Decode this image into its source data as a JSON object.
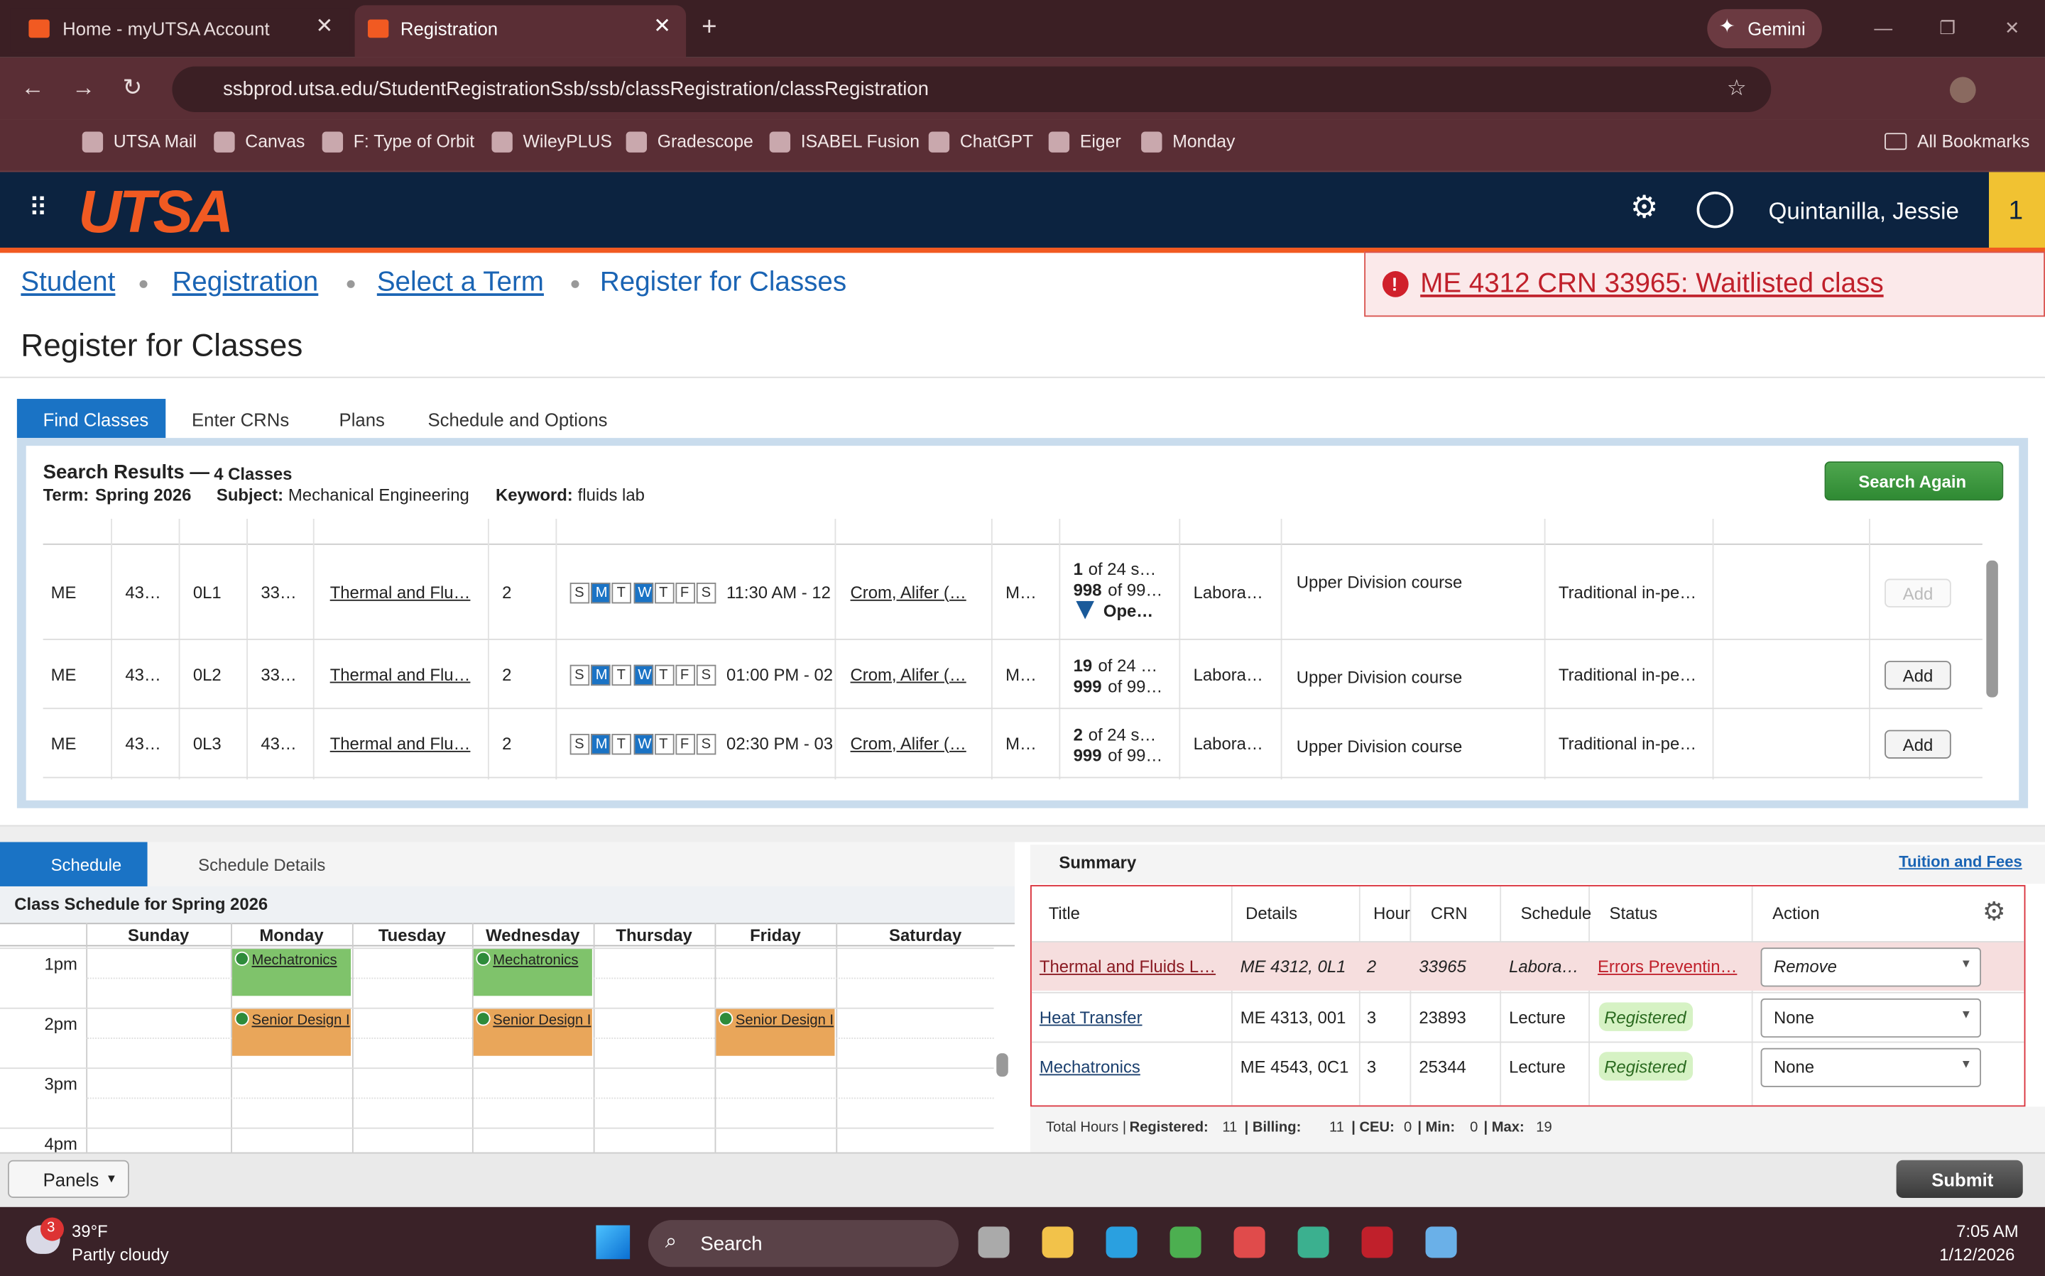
{
  "browser": {
    "tabs": [
      "Home - myUTSA Account",
      "Registration"
    ],
    "gemini": "Gemini",
    "url": "ssbprod.utsa.edu/StudentRegistrationSsb/ssb/classRegistration/classRegistration",
    "bookmarks": [
      "UTSA Mail",
      "Canvas",
      "F: Type of Orbit",
      "WileyPLUS",
      "Gradescope",
      "ISABEL Fusion",
      "ChatGPT",
      "Eiger",
      "Monday"
    ],
    "all_bookmarks": "All Bookmarks"
  },
  "header": {
    "logo": "UTSA",
    "user": "Quintanilla, Jessie",
    "badge": "1"
  },
  "breadcrumb": [
    "Student",
    "Registration",
    "Select a Term",
    "Register for Classes"
  ],
  "alert": "ME 4312 CRN 33965: Waitlisted class",
  "title": "Register for Classes",
  "tabs": [
    "Find Classes",
    "Enter CRNs",
    "Plans",
    "Schedule and Options"
  ],
  "search": {
    "heading": "Search Results —",
    "count": "4 Classes",
    "term_label": "Term:",
    "term": "Spring 2026",
    "subject_label": "Subject:",
    "subject": "Mechanical Engineering",
    "keyword_label": "Keyword:",
    "keyword": "fluids lab",
    "button": "Search Again",
    "days": [
      "S",
      "M",
      "T",
      "W",
      "T",
      "F",
      "S"
    ],
    "rows": [
      {
        "subject": "ME",
        "course": "43…",
        "section": "0L1",
        "crn": "33…",
        "title": "Thermal and Flu…",
        "hours": "2",
        "time": "11:30 AM - 12",
        "instructor": "Crom, Alifer (…",
        "campus": "M…",
        "seats": [
          "1",
          "of 24 s…"
        ],
        "waitlist": [
          "998",
          "of 99…"
        ],
        "open": "Ope…",
        "schedule_type": "Labora…",
        "attribute": "Upper Division course",
        "method": "Traditional in-pe…",
        "action": "Add"
      },
      {
        "subject": "ME",
        "course": "43…",
        "section": "0L2",
        "crn": "33…",
        "title": "Thermal and Flu…",
        "hours": "2",
        "time": "01:00 PM - 02",
        "instructor": "Crom, Alifer (…",
        "campus": "M…",
        "seats": [
          "19",
          "of 24 …"
        ],
        "waitlist": [
          "999",
          "of 99…"
        ],
        "schedule_type": "Labora…",
        "attribute": "Upper Division course",
        "method": "Traditional in-pe…",
        "action": "Add"
      },
      {
        "subject": "ME",
        "course": "43…",
        "section": "0L3",
        "crn": "43…",
        "title": "Thermal and Flu…",
        "hours": "2",
        "time": "02:30 PM - 03",
        "instructor": "Crom, Alifer (…",
        "campus": "M…",
        "seats": [
          "2",
          "of 24 s…"
        ],
        "waitlist": [
          "999",
          "of 99…"
        ],
        "schedule_type": "Labora…",
        "attribute": "Upper Division course",
        "method": "Traditional in-pe…",
        "action": "Add"
      }
    ]
  },
  "schedule": {
    "tabs": [
      "Schedule",
      "Schedule Details"
    ],
    "heading": "Class Schedule for Spring 2026",
    "days": [
      "Sunday",
      "Monday",
      "Tuesday",
      "Wednesday",
      "Thursday",
      "Friday",
      "Saturday"
    ],
    "times": [
      "1pm",
      "2pm",
      "3pm",
      "4pm"
    ],
    "events": [
      {
        "title": "Mechatronics"
      },
      {
        "title": "Mechatronics"
      },
      {
        "title": "Senior Design I"
      },
      {
        "title": "Senior Design I"
      },
      {
        "title": "Senior Design I"
      }
    ]
  },
  "summary": {
    "heading": "Summary",
    "link": "Tuition and Fees",
    "columns": [
      "Title",
      "Details",
      "Hour",
      "CRN",
      "Schedule",
      "Status",
      "Action"
    ],
    "rows": [
      {
        "title": "Thermal and Fluids L…",
        "details": "ME 4312, 0L1",
        "hours": "2",
        "crn": "33965",
        "schedule": "Labora…",
        "status": "Errors Preventin…",
        "action": "Remove"
      },
      {
        "title": "Heat Transfer",
        "details": "ME 4313, 001",
        "hours": "3",
        "crn": "23893",
        "schedule": "Lecture",
        "status": "Registered",
        "action": "None"
      },
      {
        "title": "Mechatronics",
        "details": "ME 4543, 0C1",
        "hours": "3",
        "crn": "25344",
        "schedule": "Lecture",
        "status": "Registered",
        "action": "None"
      }
    ],
    "totals_label": "Total Hours |",
    "totals": [
      [
        "Registered:",
        "11"
      ],
      [
        "| Billing:",
        "11"
      ],
      [
        "| CEU:",
        "0"
      ],
      [
        "| Min:",
        "0"
      ],
      [
        "| Max:",
        "19"
      ]
    ]
  },
  "footer": {
    "panels": "Panels",
    "submit": "Submit"
  },
  "taskbar": {
    "temp": "39°F",
    "weather": "Partly cloudy",
    "badge": "3",
    "search": "Search",
    "time": "7:05 AM",
    "date": "1/12/2026"
  }
}
